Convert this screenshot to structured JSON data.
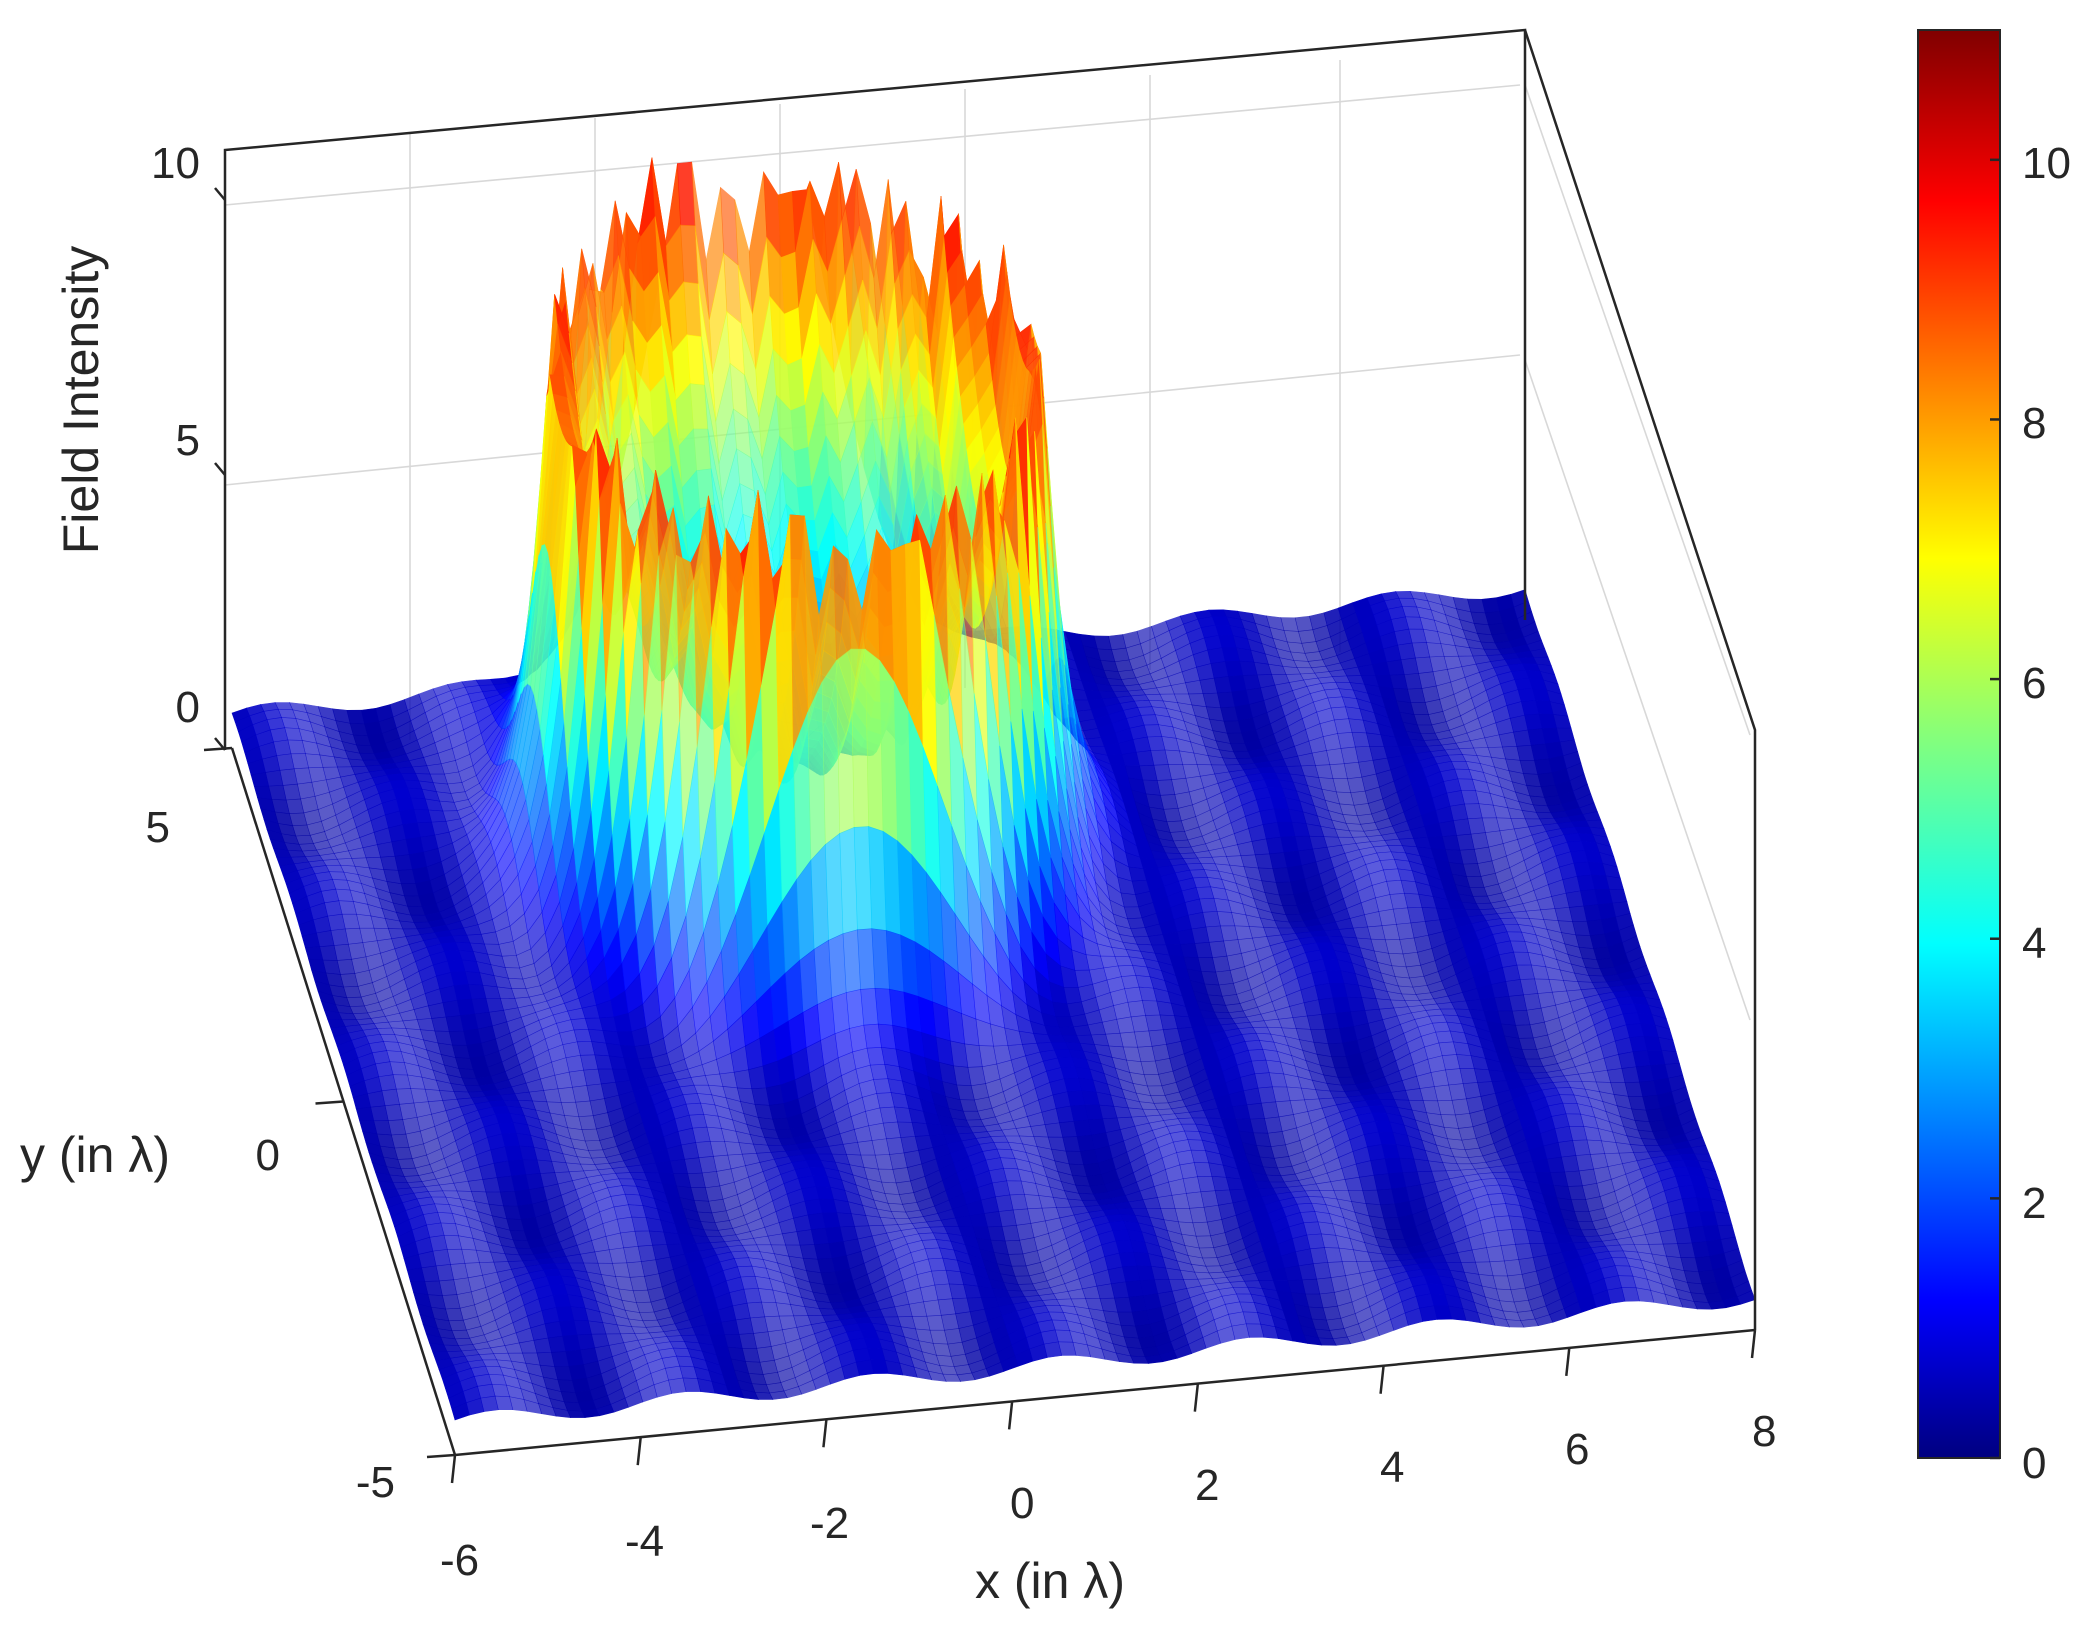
{
  "chart_data": {
    "type": "surface",
    "zlabel": "Field Intensity",
    "xlabel": "x (in λ)",
    "ylabel": "y (in λ)",
    "x_ticks": [
      "-6",
      "-4",
      "-2",
      "0",
      "2",
      "4",
      "6",
      "8"
    ],
    "y_ticks": [
      "-5",
      "0",
      "5"
    ],
    "z_ticks": [
      "0",
      "5",
      "10"
    ],
    "xlim": [
      -6,
      8
    ],
    "ylim": [
      -5,
      5
    ],
    "zlim": [
      0,
      10
    ],
    "colorbar": {
      "colormap": "jet",
      "ticks": [
        "0",
        "2",
        "4",
        "6",
        "8",
        "10"
      ],
      "range": [
        0,
        11
      ]
    },
    "surface": {
      "description_values": {
        "ring_center_x": -0.5,
        "ring_center_y": 2.5,
        "ring_radius": 2.6,
        "ring_peak": 10.5,
        "center_value": 2.5,
        "background_value": 0.6
      }
    },
    "grid": true
  }
}
